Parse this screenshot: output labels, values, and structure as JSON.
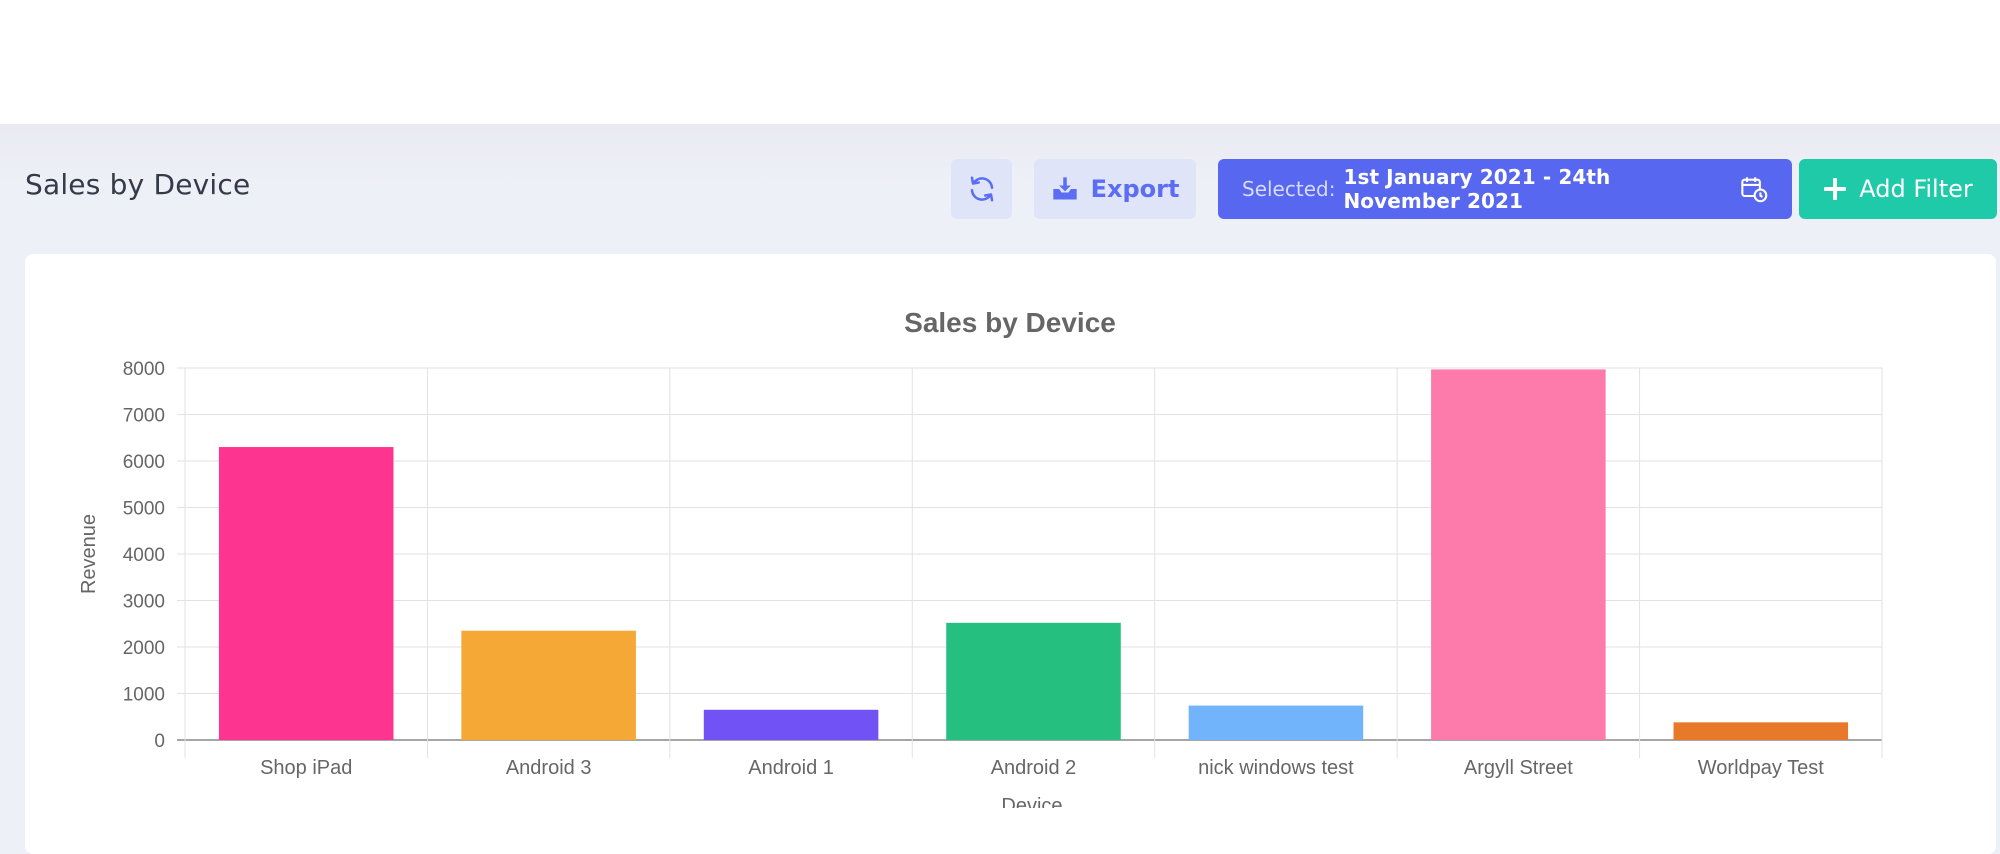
{
  "page": {
    "title": "Sales by Device"
  },
  "toolbar": {
    "refresh_icon": "refresh-icon",
    "export_label": "Export",
    "export_icon": "download-icon",
    "date_selected_label": "Selected:",
    "date_range": "1st January 2021 - 24th November 2021",
    "calendar_icon": "calendar-clock-icon",
    "add_filter_label": "Add Filter",
    "add_filter_icon": "plus-icon"
  },
  "colors": {
    "accent": "#5867f0",
    "add_filter": "#1fcaa9",
    "export_bg": "#e0e4f8"
  },
  "chart_data": {
    "type": "bar",
    "title": "Sales by Device",
    "xlabel": "Device",
    "ylabel": "Revenue",
    "ylim": [
      0,
      8000
    ],
    "yticks": [
      0,
      1000,
      2000,
      3000,
      4000,
      5000,
      6000,
      7000,
      8000
    ],
    "grid": true,
    "categories": [
      "Shop iPad",
      "Android 3",
      "Android 1",
      "Android 2",
      "nick windows test",
      "Argyll Street",
      "Worldpay Test"
    ],
    "values": [
      6300,
      2350,
      650,
      2520,
      740,
      7970,
      380
    ],
    "colors": [
      "#fd3591",
      "#f5a835",
      "#7153f5",
      "#25bf80",
      "#72b4fc",
      "#fc7bab",
      "#e8792a"
    ]
  }
}
